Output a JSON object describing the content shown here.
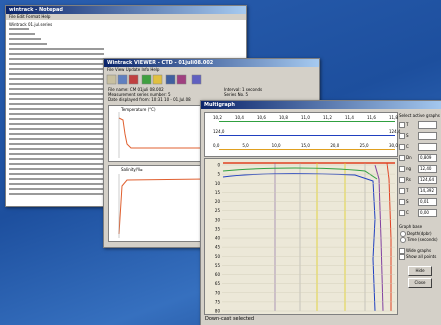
{
  "notepad": {
    "title": "wintrack - Notepad",
    "menu": "File  Edit  Format  Help",
    "first_line": "Wintrack 01.jul.series"
  },
  "viewer": {
    "title": "Wintrack VIEWER - CTD - 01juli08.002",
    "menu": "File  View  Update  Info  Help",
    "info_left": [
      "File name: CM 01juli 08.002",
      "Measurement series number: 5",
      "Date displayed from: 10:31 10 - 01.Jul.08"
    ],
    "info_right": [
      "Interval: 1 seconds",
      "Series No. 5"
    ],
    "plot1_label": "Temperature (°C)",
    "plot2_label": "Salinity/‰"
  },
  "multigraph": {
    "title": "Multigraph",
    "scale_rows": [
      [
        "10,2",
        "10,4",
        "10,6",
        "10,8",
        "11,0",
        "11,2",
        "11,4",
        "11,6",
        "11,8"
      ],
      [
        "124,0",
        "124,4"
      ],
      [
        "0,0",
        "5,0",
        "10,0",
        "15,0",
        "20,0",
        "25,0",
        "30,0"
      ]
    ],
    "depth_labels": [
      "0",
      "5",
      "10",
      "15",
      "20",
      "25",
      "30",
      "35",
      "40",
      "45",
      "50",
      "55",
      "60",
      "65",
      "70",
      "75",
      "80"
    ],
    "status": "Down-cast selected",
    "panel_title": "Select active graphs",
    "channels": [
      {
        "name": "T",
        "value": ""
      },
      {
        "name": "S",
        "value": ""
      },
      {
        "name": "C",
        "value": ""
      },
      {
        "name": "Dn",
        "value": "0,809"
      },
      {
        "name": "ng",
        "value": "12,40"
      },
      {
        "name": "Rs",
        "value": "124,64"
      },
      {
        "name": "T",
        "value": "14,392"
      },
      {
        "name": "S",
        "value": "0,01"
      },
      {
        "name": "C",
        "value": "0,00"
      }
    ],
    "graph_base": "Graph base",
    "base_options": [
      "Depth(dpbr)",
      "Time (seconds)"
    ],
    "wide": "Wide graphs",
    "show_all": "Show all points",
    "buttons": [
      "Hide",
      "Close"
    ]
  }
}
